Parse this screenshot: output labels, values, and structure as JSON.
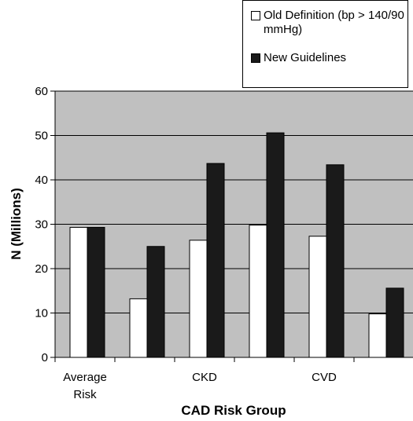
{
  "chart_data": {
    "type": "bar",
    "categories": [
      "Average Risk",
      "",
      "CKD",
      "",
      "CVD",
      ""
    ],
    "tick_labels": [
      [
        "Average",
        "Risk"
      ],
      [
        ""
      ],
      [
        "CKD"
      ],
      [
        ""
      ],
      [
        "CVD"
      ],
      [
        ""
      ]
    ],
    "series": [
      {
        "name": "Old Definition (bp > 140/90 mmHg)",
        "color": "#ffffff",
        "values": [
          29.3,
          13.2,
          26.4,
          29.8,
          27.3,
          9.8
        ]
      },
      {
        "name": "New Guidelines",
        "color": "#1a1a1a",
        "values": [
          29.3,
          25.0,
          43.7,
          50.6,
          43.4,
          15.6
        ]
      }
    ],
    "xlabel": "CAD Risk Group",
    "ylabel": "N (Millions)",
    "ylim": [
      0,
      60
    ],
    "yticks": [
      0,
      10,
      20,
      30,
      40,
      50,
      60
    ],
    "grid": true,
    "plot_background": "#c0c0c0",
    "legend_placement": "top-right"
  },
  "legend": {
    "items": [
      {
        "label": "Old Definition (bp > 140/90 mmHg)",
        "color": "#ffffff"
      },
      {
        "label": "New Guidelines",
        "color": "#1a1a1a"
      }
    ]
  }
}
